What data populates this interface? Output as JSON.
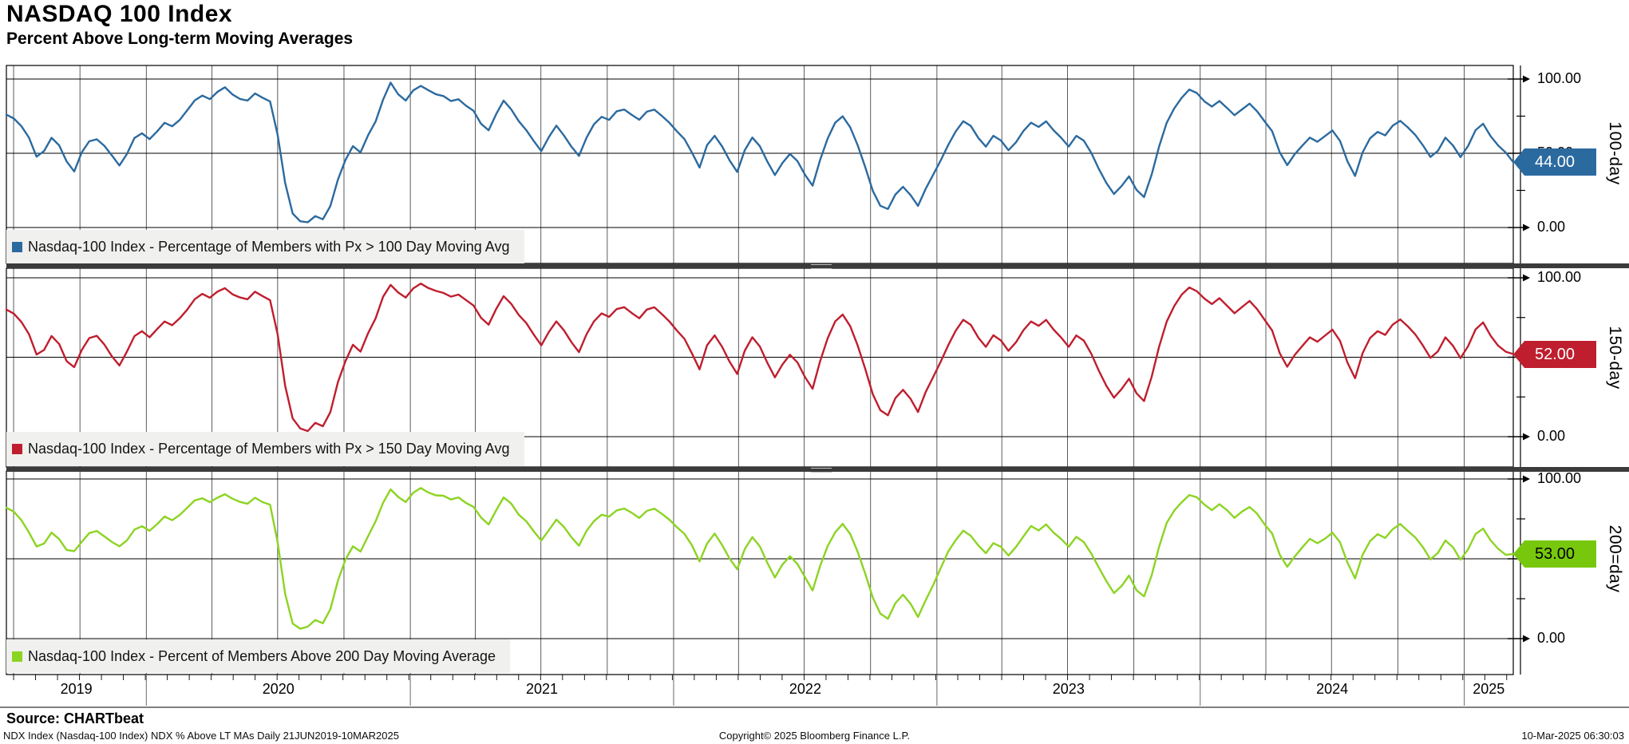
{
  "header": {
    "title": "NASDAQ 100 Index",
    "subtitle": "Percent Above Long-term Moving Averages"
  },
  "footer": {
    "source": "Source: CHARTbeat",
    "left": "NDX Index (Nasdaq-100 Index) NDX % Above LT MAs  Daily 21JUN2019-10MAR2025",
    "center": "Copyright© 2025 Bloomberg Finance L.P.",
    "right": "10-Mar-2025 06:30:03"
  },
  "chart_data": {
    "type": "line",
    "title": "NASDAQ 100 Index - Percent Above Long-term Moving Averages",
    "x": {
      "start": "21JUN2019",
      "end": "10MAR2025",
      "frequency": "Daily",
      "year_labels": [
        "2019",
        "2020",
        "2021",
        "2022",
        "2023",
        "2024",
        "2025"
      ]
    },
    "ylim": [
      0,
      100
    ],
    "ytick_labels": [
      "100.00",
      "50.00",
      "0.00"
    ],
    "grid": "quarterly vertical lines; horizontal lines at 0, 50, 100",
    "legend_position": "bottom-left inside each panel",
    "panels": [
      {
        "id": "ma100",
        "legend": "Nasdaq-100 Index - Percentage of Members with Px > 100 Day Moving Avg",
        "axis_title": "100-day",
        "line_color": "#2b6a9f",
        "badge_color": "#2b6a9f",
        "badge_text_color": "#ffffff",
        "last_value": 44,
        "last_value_label": "44.00",
        "values": [
          76,
          74,
          68,
          60,
          48,
          52,
          60,
          55,
          45,
          38,
          50,
          58,
          60,
          55,
          48,
          42,
          50,
          60,
          63,
          60,
          65,
          70,
          68,
          73,
          79,
          85,
          89,
          87,
          91,
          94,
          90,
          87,
          85,
          90,
          88,
          85,
          62,
          30,
          10,
          4,
          3,
          8,
          6,
          14,
          32,
          46,
          55,
          50,
          62,
          72,
          86,
          97,
          90,
          86,
          92,
          95,
          93,
          90,
          88,
          85,
          87,
          82,
          78,
          70,
          66,
          76,
          85,
          80,
          72,
          65,
          58,
          52,
          61,
          68,
          62,
          55,
          48,
          60,
          70,
          75,
          72,
          78,
          80,
          76,
          72,
          78,
          80,
          75,
          70,
          65,
          60,
          50,
          40,
          56,
          62,
          54,
          45,
          38,
          52,
          60,
          55,
          45,
          35,
          43,
          50,
          45,
          35,
          28,
          46,
          60,
          70,
          75,
          68,
          55,
          40,
          25,
          15,
          12,
          22,
          28,
          22,
          14,
          26,
          36,
          45,
          55,
          65,
          72,
          68,
          60,
          55,
          62,
          58,
          52,
          58,
          65,
          70,
          68,
          72,
          65,
          60,
          55,
          62,
          58,
          50,
          40,
          30,
          22,
          28,
          35,
          25,
          20,
          36,
          55,
          70,
          80,
          88,
          93,
          90,
          85,
          82,
          85,
          80,
          76,
          80,
          83,
          78,
          72,
          65,
          50,
          42,
          50,
          55,
          60,
          58,
          62,
          65,
          58,
          45,
          35,
          50,
          60,
          65,
          62,
          68,
          72,
          68,
          62,
          55,
          48,
          52,
          60,
          55,
          48,
          55,
          65,
          70,
          62,
          55,
          50,
          44
        ]
      },
      {
        "id": "ma150",
        "legend": "Nasdaq-100 Index - Percentage of Members with Px > 150 Day Moving Avg",
        "axis_title": "150-day",
        "line_color": "#bf1e2e",
        "badge_color": "#bf1e2e",
        "badge_text_color": "#ffffff",
        "last_value": 52,
        "last_value_label": "52.00",
        "values": [
          80,
          78,
          72,
          64,
          52,
          55,
          63,
          58,
          48,
          44,
          54,
          62,
          64,
          58,
          50,
          45,
          54,
          63,
          66,
          63,
          68,
          72,
          70,
          75,
          80,
          86,
          90,
          88,
          91,
          93,
          90,
          88,
          86,
          91,
          89,
          86,
          64,
          32,
          12,
          5,
          3,
          9,
          7,
          15,
          34,
          48,
          58,
          53,
          65,
          75,
          88,
          95,
          91,
          88,
          93,
          96,
          94,
          92,
          90,
          88,
          90,
          86,
          82,
          75,
          71,
          80,
          88,
          84,
          77,
          71,
          64,
          58,
          66,
          72,
          67,
          60,
          53,
          64,
          73,
          78,
          75,
          80,
          82,
          78,
          74,
          80,
          82,
          77,
          72,
          67,
          62,
          52,
          42,
          58,
          64,
          56,
          47,
          40,
          54,
          62,
          57,
          47,
          37,
          45,
          52,
          47,
          37,
          30,
          48,
          62,
          72,
          77,
          70,
          57,
          42,
          27,
          17,
          13,
          24,
          30,
          24,
          15,
          28,
          38,
          47,
          57,
          67,
          74,
          70,
          62,
          57,
          64,
          60,
          54,
          60,
          67,
          72,
          70,
          74,
          67,
          62,
          57,
          64,
          60,
          52,
          42,
          32,
          24,
          30,
          37,
          27,
          22,
          38,
          57,
          72,
          82,
          90,
          94,
          91,
          87,
          84,
          87,
          82,
          78,
          82,
          85,
          80,
          74,
          67,
          52,
          44,
          52,
          57,
          62,
          60,
          64,
          67,
          60,
          47,
          37,
          52,
          62,
          67,
          64,
          70,
          74,
          70,
          64,
          57,
          50,
          54,
          62,
          57,
          50,
          57,
          67,
          72,
          64,
          57,
          53,
          52
        ]
      },
      {
        "id": "ma200",
        "legend": "Nasdaq-100 Index - Percent of Members Above 200 Day Moving Average",
        "axis_title": "200=day",
        "line_color": "#8cd422",
        "badge_color": "#77c80d",
        "badge_text_color": "#000000",
        "last_value": 53,
        "last_value_label": "53.00",
        "values": [
          82,
          80,
          74,
          66,
          58,
          60,
          66,
          62,
          56,
          55,
          60,
          66,
          68,
          64,
          60,
          58,
          62,
          68,
          70,
          68,
          72,
          76,
          74,
          78,
          82,
          86,
          88,
          86,
          88,
          90,
          88,
          86,
          84,
          88,
          86,
          84,
          60,
          28,
          10,
          6,
          7,
          12,
          10,
          18,
          36,
          50,
          58,
          54,
          64,
          74,
          85,
          93,
          89,
          86,
          91,
          94,
          92,
          90,
          89,
          87,
          89,
          85,
          82,
          76,
          72,
          80,
          88,
          85,
          78,
          73,
          67,
          62,
          68,
          74,
          70,
          64,
          58,
          67,
          74,
          78,
          76,
          80,
          82,
          79,
          75,
          80,
          82,
          78,
          74,
          70,
          66,
          58,
          48,
          60,
          66,
          58,
          50,
          44,
          56,
          63,
          58,
          48,
          38,
          46,
          52,
          47,
          38,
          30,
          46,
          58,
          66,
          72,
          66,
          54,
          40,
          26,
          16,
          12,
          22,
          28,
          22,
          13,
          24,
          34,
          44,
          54,
          62,
          68,
          64,
          58,
          54,
          60,
          57,
          52,
          58,
          64,
          70,
          68,
          72,
          66,
          62,
          58,
          64,
          60,
          53,
          45,
          36,
          28,
          33,
          40,
          30,
          26,
          40,
          58,
          72,
          80,
          86,
          90,
          88,
          84,
          81,
          84,
          80,
          76,
          80,
          82,
          78,
          72,
          66,
          52,
          45,
          52,
          57,
          62,
          60,
          63,
          66,
          60,
          48,
          38,
          52,
          61,
          66,
          63,
          68,
          72,
          68,
          63,
          57,
          50,
          54,
          61,
          57,
          50,
          56,
          65,
          69,
          62,
          56,
          52,
          53
        ]
      }
    ]
  }
}
